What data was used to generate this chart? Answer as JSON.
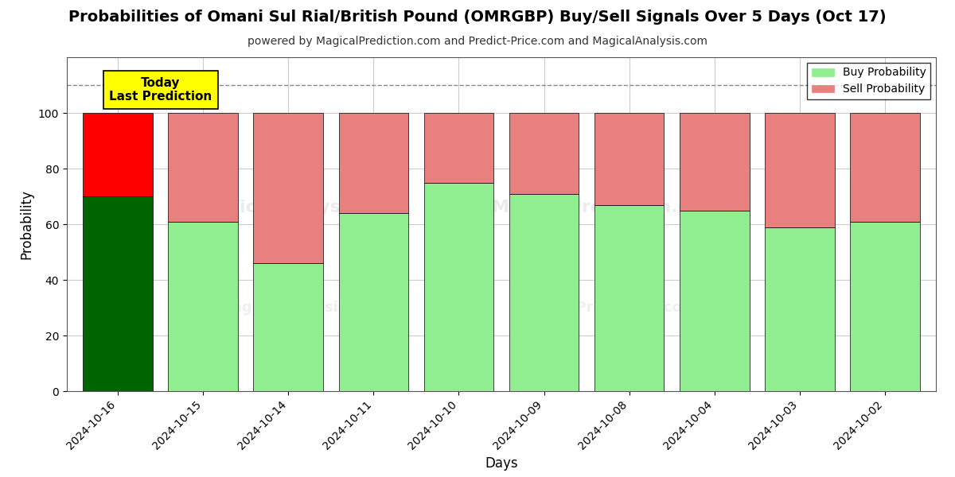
{
  "title": "Probabilities of Omani Sul Rial/British Pound (OMRGBP) Buy/Sell Signals Over 5 Days (Oct 17)",
  "subtitle": "powered by MagicalPrediction.com and Predict-Price.com and MagicalAnalysis.com",
  "xlabel": "Days",
  "ylabel": "Probability",
  "categories": [
    "2024-10-16",
    "2024-10-15",
    "2024-10-14",
    "2024-10-11",
    "2024-10-10",
    "2024-10-09",
    "2024-10-08",
    "2024-10-04",
    "2024-10-03",
    "2024-10-02"
  ],
  "buy_values": [
    70,
    61,
    46,
    64,
    75,
    71,
    67,
    65,
    59,
    61
  ],
  "sell_values": [
    30,
    39,
    54,
    36,
    25,
    29,
    33,
    35,
    41,
    39
  ],
  "today_bar_buy_color": "#006400",
  "today_bar_sell_color": "#FF0000",
  "other_bar_buy_color": "#90EE90",
  "other_bar_sell_color": "#E88080",
  "bar_edge_color": "#000000",
  "ylim": [
    0,
    120
  ],
  "yticks": [
    0,
    20,
    40,
    60,
    80,
    100
  ],
  "dashed_line_y": 110,
  "dashed_line_color": "#888888",
  "legend_buy_label": "Buy Probability",
  "legend_sell_label": "Sell Probability",
  "annotation_text": "Today\nLast Prediction",
  "annotation_bg_color": "#FFFF00",
  "annotation_fontsize": 11,
  "background_color": "#FFFFFF",
  "grid_color": "#CCCCCC",
  "title_fontsize": 14,
  "subtitle_fontsize": 10,
  "bar_width": 0.82
}
